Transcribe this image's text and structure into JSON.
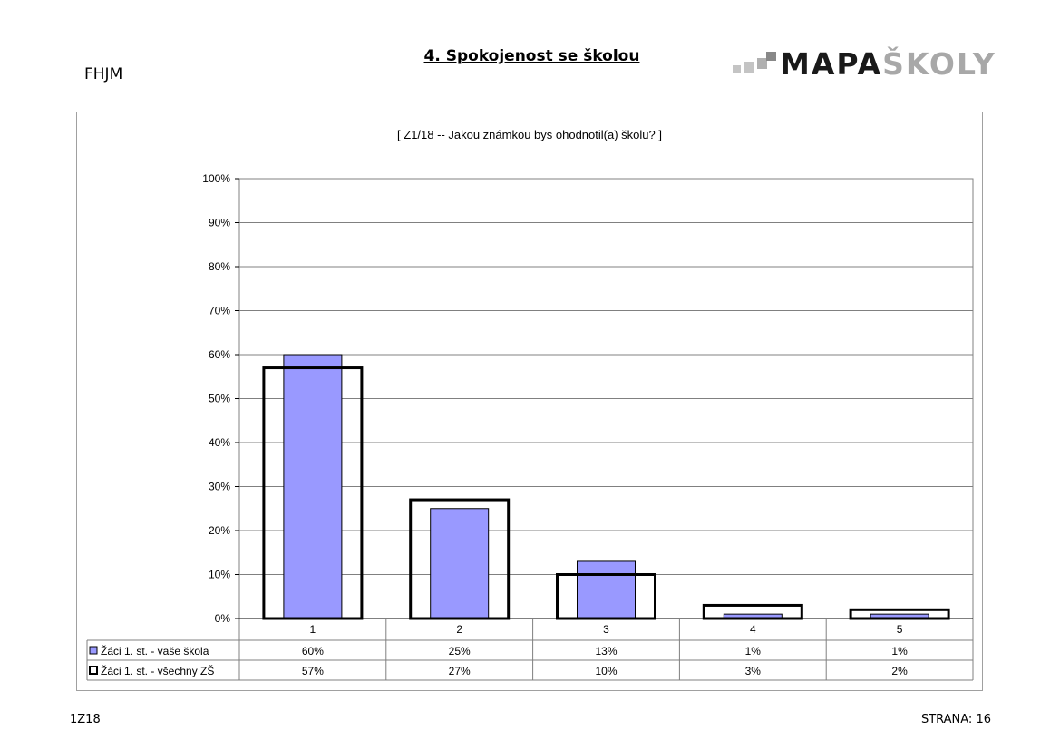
{
  "header": {
    "school": "FHJM",
    "title": "4. Spokojenost se školou",
    "logo_dark": "MAPA",
    "logo_light": "ŠKOLY"
  },
  "footer": {
    "code": "1Z18",
    "page": "STRANA: 16"
  },
  "colors": {
    "series1": "#9999ff",
    "series2": "none"
  },
  "chart_data": {
    "type": "bar",
    "title": "[ Z1/18 -- Jakou známkou bys ohodnotil(a) školu? ]",
    "categories": [
      "1",
      "2",
      "3",
      "4",
      "5"
    ],
    "ylim": [
      0,
      100
    ],
    "y_ticks": [
      "0%",
      "10%",
      "20%",
      "30%",
      "40%",
      "50%",
      "60%",
      "70%",
      "80%",
      "90%",
      "100%"
    ],
    "grid": true,
    "legend": "data-table",
    "series": [
      {
        "name": "Žáci 1. st. - vaše škola",
        "values": [
          60,
          25,
          13,
          1,
          1
        ],
        "labels": [
          "60%",
          "25%",
          "13%",
          "1%",
          "1%"
        ]
      },
      {
        "name": "Žáci 1. st. - všechny ZŠ",
        "values": [
          57,
          27,
          10,
          3,
          2
        ],
        "labels": [
          "57%",
          "27%",
          "10%",
          "3%",
          "2%"
        ]
      }
    ]
  }
}
